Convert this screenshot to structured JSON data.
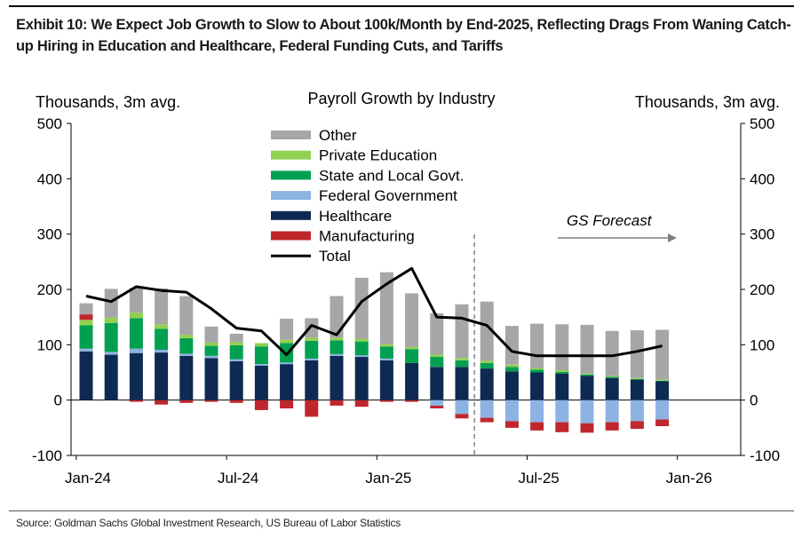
{
  "header": {
    "title": "Exhibit 10: We Expect Job Growth to Slow to About 100k/Month by End-2025, Reflecting Drags From Waning Catch-up Hiring in Education and Healthcare, Federal Funding Cuts, and Tariffs"
  },
  "footer": {
    "source": "Source: Goldman Sachs Global Investment Research, US Bureau of Labor Statistics"
  },
  "chart_data": {
    "type": "bar",
    "subtype": "stacked bar with line overlay",
    "title": "Payroll Growth by Industry",
    "ylabel_left": "Thousands, 3m avg.",
    "ylabel_right": "Thousands, 3m avg.",
    "ylim": [
      -100,
      500
    ],
    "yticks": [
      -100,
      0,
      100,
      200,
      300,
      400,
      500
    ],
    "xtick_labels": [
      "Jan-24",
      "Jul-24",
      "Jan-25",
      "Jul-25",
      "Jan-26"
    ],
    "xtick_index": [
      0,
      6,
      12,
      18,
      24
    ],
    "forecast_label": "GS Forecast",
    "forecast_start_index": 15.5,
    "categories": [
      "Jan-24",
      "Feb-24",
      "Mar-24",
      "Apr-24",
      "May-24",
      "Jun-24",
      "Jul-24",
      "Aug-24",
      "Sep-24",
      "Oct-24",
      "Nov-24",
      "Dec-24",
      "Jan-25",
      "Feb-25",
      "Mar-25",
      "Apr-25",
      "May-25",
      "Jun-25",
      "Jul-25",
      "Aug-25",
      "Sep-25",
      "Oct-25",
      "Nov-25",
      "Dec-25"
    ],
    "legend": [
      "Other",
      "Private Education",
      "State and Local Govt.",
      "Federal Government",
      "Healthcare",
      "Manufacturing",
      "Total"
    ],
    "colors": {
      "Other": "#a6a6a6",
      "Private Education": "#92d050",
      "State and Local Govt.": "#00a050",
      "Federal Government": "#8db3e2",
      "Healthcare": "#0e2a52",
      "Manufacturing": "#c0272d",
      "Total": "#000000"
    },
    "series": [
      {
        "name": "Healthcare",
        "values": [
          88,
          82,
          85,
          86,
          80,
          76,
          70,
          62,
          65,
          72,
          80,
          78,
          72,
          67,
          60,
          60,
          57,
          52,
          50,
          48,
          44,
          40,
          37,
          34
        ]
      },
      {
        "name": "Federal Government",
        "values": [
          5,
          5,
          8,
          5,
          4,
          4,
          4,
          3,
          3,
          3,
          3,
          3,
          3,
          0,
          -10,
          -25,
          -32,
          -38,
          -40,
          -40,
          -42,
          -40,
          -38,
          -35
        ]
      },
      {
        "name": "State and Local Govt.",
        "values": [
          42,
          52,
          55,
          38,
          28,
          18,
          25,
          32,
          35,
          32,
          25,
          25,
          22,
          25,
          18,
          12,
          10,
          8,
          5,
          3,
          2,
          2,
          1,
          1
        ]
      },
      {
        "name": "Private Education",
        "values": [
          10,
          10,
          10,
          8,
          6,
          6,
          6,
          6,
          6,
          6,
          5,
          5,
          4,
          4,
          4,
          4,
          4,
          4,
          3,
          3,
          2,
          2,
          2,
          2
        ]
      },
      {
        "name": "Manufacturing",
        "values": [
          10,
          0,
          -3,
          -8,
          -5,
          -3,
          -5,
          -18,
          -15,
          -30,
          -10,
          -12,
          -3,
          -3,
          -5,
          -8,
          -8,
          -12,
          -15,
          -18,
          -17,
          -15,
          -14,
          -12
        ]
      },
      {
        "name": "Other",
        "values": [
          20,
          52,
          45,
          65,
          70,
          29,
          15,
          0,
          38,
          35,
          75,
          110,
          130,
          97,
          75,
          97,
          107,
          70,
          80,
          83,
          88,
          81,
          86,
          90
        ]
      },
      {
        "name": "Total",
        "type": "line",
        "values": [
          188,
          178,
          205,
          198,
          195,
          165,
          130,
          125,
          82,
          135,
          118,
          178,
          210,
          238,
          150,
          148,
          135,
          88,
          80,
          80,
          80,
          80,
          88,
          98
        ]
      }
    ]
  }
}
